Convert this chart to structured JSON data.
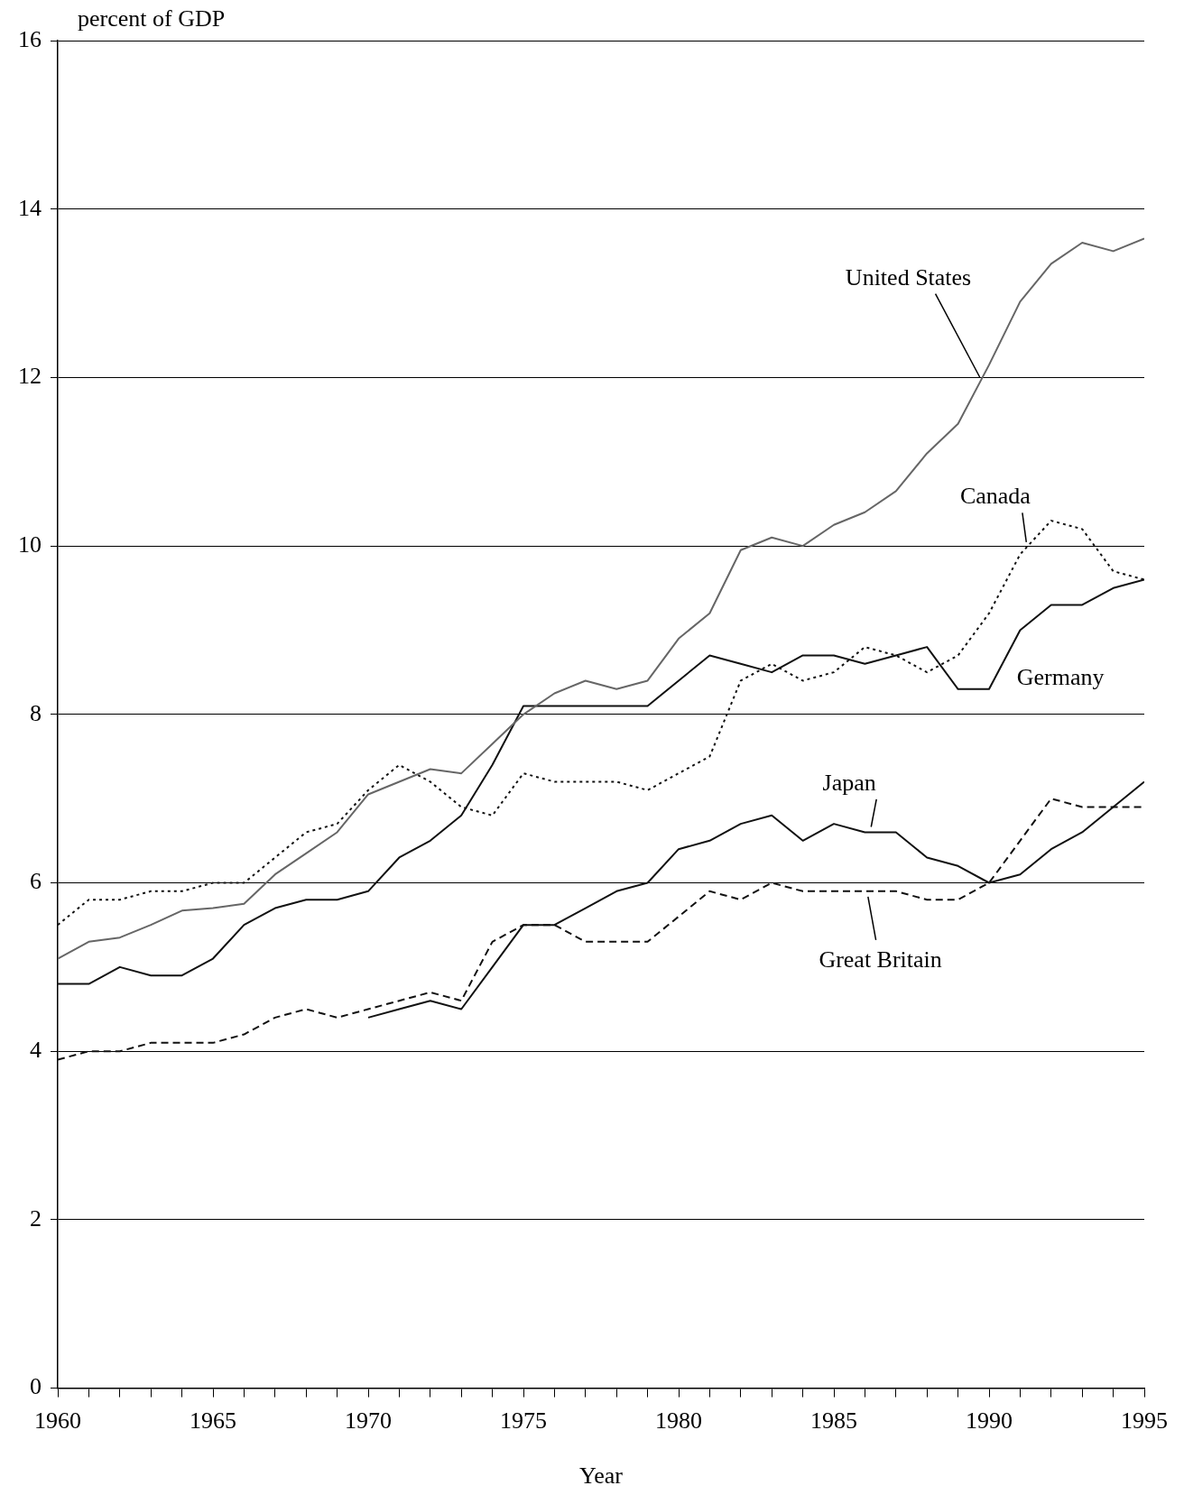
{
  "chart_data": {
    "type": "line",
    "ylabel": "percent of GDP",
    "xlabel": "Year",
    "x": [
      1960,
      1961,
      1962,
      1963,
      1964,
      1965,
      1966,
      1967,
      1968,
      1969,
      1970,
      1971,
      1972,
      1973,
      1974,
      1975,
      1976,
      1977,
      1978,
      1979,
      1980,
      1981,
      1982,
      1983,
      1984,
      1985,
      1986,
      1987,
      1988,
      1989,
      1990,
      1991,
      1992,
      1993,
      1994,
      1995
    ],
    "series": [
      {
        "name": "United States",
        "color": "#666666",
        "line_style": "solid",
        "values": [
          5.1,
          5.3,
          5.35,
          5.5,
          5.67,
          5.7,
          5.75,
          6.1,
          6.35,
          6.6,
          7.05,
          7.2,
          7.35,
          7.3,
          7.65,
          8.0,
          8.25,
          8.4,
          8.3,
          8.4,
          8.9,
          9.2,
          9.95,
          10.1,
          10.0,
          10.25,
          10.4,
          10.65,
          11.1,
          11.45,
          12.15,
          12.9,
          13.35,
          13.6,
          13.5,
          13.65
        ]
      },
      {
        "name": "Canada",
        "color": "#111111",
        "line_style": "dotted",
        "values": [
          5.5,
          5.8,
          5.8,
          5.9,
          5.9,
          6.0,
          6.0,
          6.3,
          6.6,
          6.7,
          7.1,
          7.4,
          7.2,
          6.9,
          6.8,
          7.3,
          7.2,
          7.2,
          7.2,
          7.1,
          7.3,
          7.5,
          8.4,
          8.6,
          8.4,
          8.5,
          8.8,
          8.7,
          8.5,
          8.7,
          9.2,
          9.9,
          10.3,
          10.2,
          9.7,
          9.6
        ]
      },
      {
        "name": "Germany",
        "color": "#111111",
        "line_style": "solid",
        "values": [
          4.8,
          4.8,
          5.0,
          4.9,
          4.9,
          5.1,
          5.5,
          5.7,
          5.8,
          5.8,
          5.9,
          6.3,
          6.5,
          6.8,
          7.4,
          8.1,
          8.1,
          8.1,
          8.1,
          8.1,
          8.4,
          8.7,
          8.6,
          8.5,
          8.7,
          8.7,
          8.6,
          8.7,
          8.8,
          8.3,
          8.3,
          9.0,
          9.3,
          9.3,
          9.5,
          9.6
        ]
      },
      {
        "name": "Japan",
        "color": "#111111",
        "line_style": "solid",
        "values": [
          null,
          null,
          null,
          null,
          null,
          null,
          null,
          null,
          null,
          null,
          4.4,
          4.5,
          4.6,
          4.5,
          5.0,
          5.5,
          5.5,
          5.7,
          5.9,
          6.0,
          6.4,
          6.5,
          6.7,
          6.8,
          6.5,
          6.7,
          6.6,
          6.6,
          6.3,
          6.2,
          6.0,
          6.1,
          6.4,
          6.6,
          6.9,
          7.2
        ]
      },
      {
        "name": "Great Britain",
        "color": "#111111",
        "line_style": "dashed",
        "values": [
          3.9,
          4.0,
          4.0,
          4.1,
          4.1,
          4.1,
          4.2,
          4.4,
          4.5,
          4.4,
          4.5,
          4.6,
          4.7,
          4.6,
          5.3,
          5.5,
          5.5,
          5.3,
          5.3,
          5.3,
          5.6,
          5.9,
          5.8,
          6.0,
          5.9,
          5.9,
          5.9,
          5.9,
          5.8,
          5.8,
          6.0,
          6.5,
          7.0,
          6.9,
          6.9,
          6.9
        ]
      }
    ],
    "xlim": [
      1960,
      1995
    ],
    "xticks": [
      1960,
      {
        "value": 1961,
        "label": null
      },
      {
        "value": 1962,
        "label": null
      },
      {
        "value": 1963,
        "label": null
      },
      {
        "value": 1964,
        "label": null
      },
      1965,
      {
        "value": 1966,
        "label": null
      },
      {
        "value": 1967,
        "label": null
      },
      {
        "value": 1968,
        "label": null
      },
      {
        "value": 1969,
        "label": null
      },
      1970,
      {
        "value": 1971,
        "label": null
      },
      {
        "value": 1972,
        "label": null
      },
      {
        "value": 1973,
        "label": null
      },
      {
        "value": 1974,
        "label": null
      },
      1975,
      {
        "value": 1976,
        "label": null
      },
      {
        "value": 1977,
        "label": null
      },
      {
        "value": 1978,
        "label": null
      },
      {
        "value": 1979,
        "label": null
      },
      1980,
      {
        "value": 1981,
        "label": null
      },
      {
        "value": 1982,
        "label": null
      },
      {
        "value": 1983,
        "label": null
      },
      {
        "value": 1984,
        "label": null
      },
      1985,
      {
        "value": 1986,
        "label": null
      },
      {
        "value": 1987,
        "label": null
      },
      {
        "value": 1988,
        "label": null
      },
      {
        "value": 1989,
        "label": null
      },
      1990,
      {
        "value": 1991,
        "label": null
      },
      {
        "value": 1992,
        "label": null
      },
      {
        "value": 1993,
        "label": null
      },
      {
        "value": 1994,
        "label": null
      },
      1995
    ],
    "ylim": [
      0,
      16
    ],
    "yticks": [
      0,
      2,
      4,
      6,
      8,
      10,
      12,
      14,
      16
    ],
    "grid": "y",
    "legend": false,
    "marker": "none"
  }
}
